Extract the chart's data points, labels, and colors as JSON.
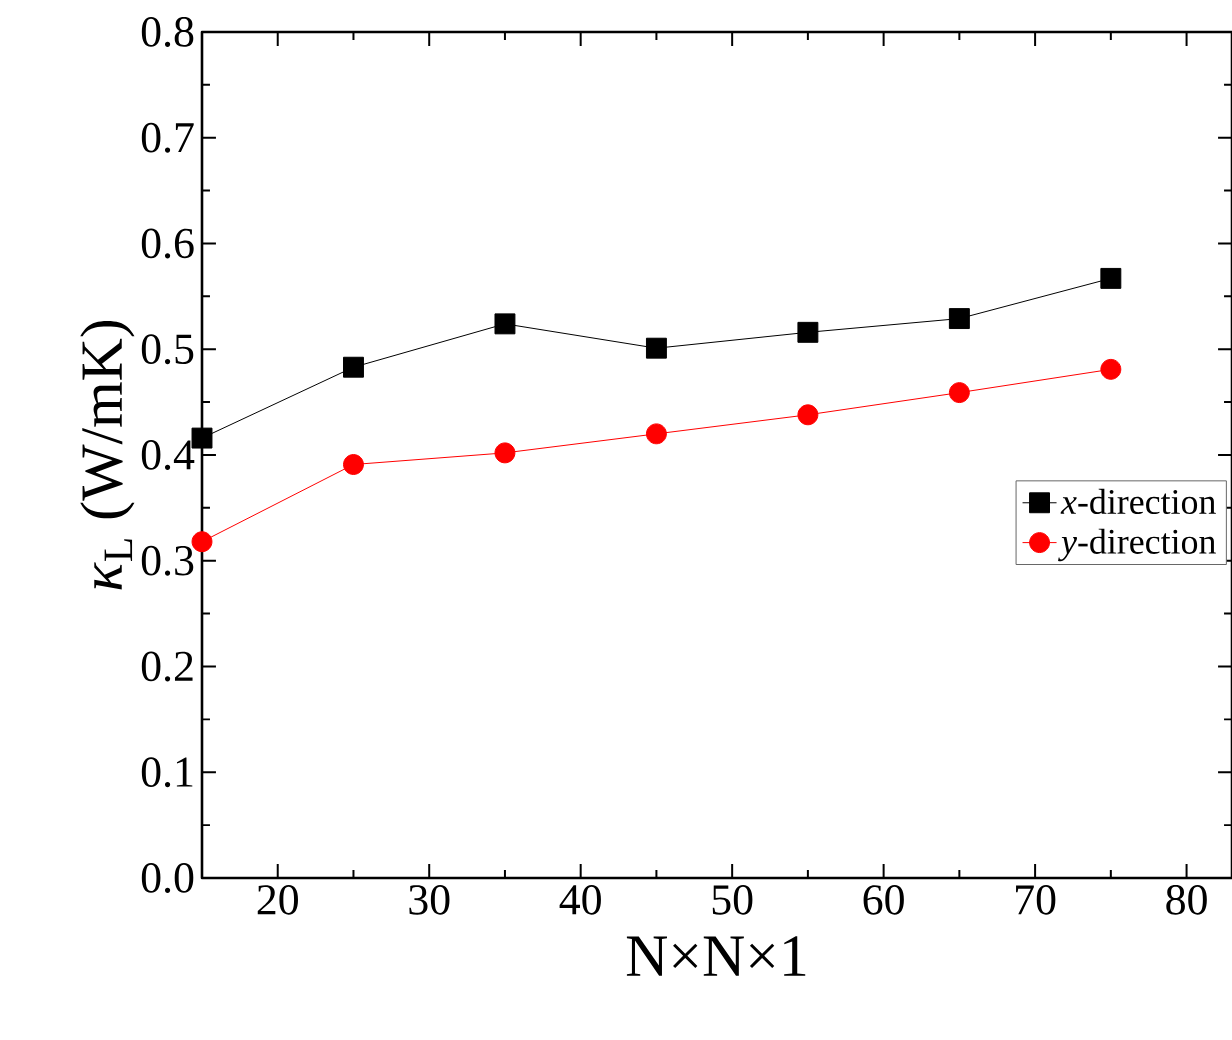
{
  "chart_data": {
    "type": "line",
    "xlabel": "N×N×1",
    "ylabel": "*κ*$_{L}$ (W/mK)",
    "x": [
      15,
      25,
      35,
      45,
      55,
      65,
      75
    ],
    "series": [
      {
        "name": "*x*-direction",
        "color": "#000000",
        "marker": "square",
        "values": [
          0.416,
          0.483,
          0.524,
          0.501,
          0.516,
          0.529,
          0.567
        ]
      },
      {
        "name": "*y*-direction",
        "color": "#ff0000",
        "marker": "circle",
        "values": [
          0.318,
          0.391,
          0.402,
          0.42,
          0.438,
          0.459,
          0.481
        ]
      }
    ],
    "xlim": [
      15,
      83
    ],
    "xticks": [
      20,
      30,
      40,
      50,
      60,
      70,
      80
    ],
    "ylim": [
      0,
      0.8
    ],
    "yticks": [
      {
        "value": 0,
        "label": "0.0"
      },
      0.1,
      0.2,
      0.3,
      0.4,
      0.5,
      0.6,
      0.7,
      0.8
    ],
    "legend": "right",
    "grid": false,
    "line_style": "solid"
  }
}
